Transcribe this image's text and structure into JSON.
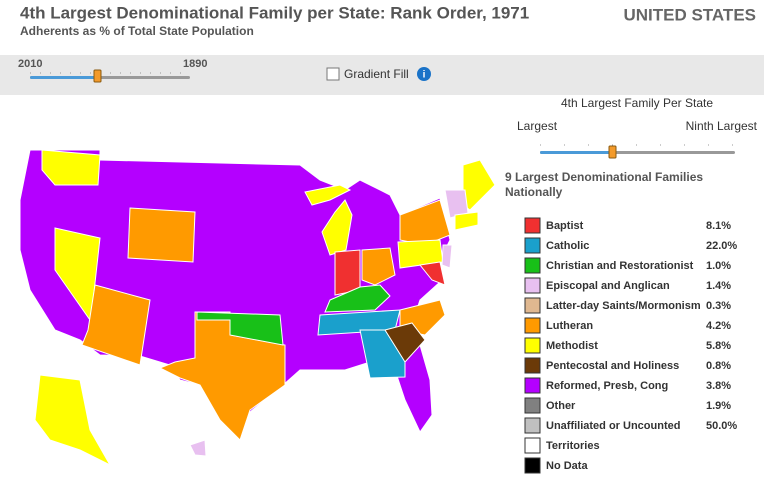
{
  "header": {
    "title": "4th Largest Denominational Family per State: Rank Order, 1971",
    "subtitle": "Adherents as % of Total State Population",
    "region": "UNITED STATES"
  },
  "toolbar": {
    "year_start": "2010",
    "year_end": "1890",
    "gradient_label": "Gradient Fill"
  },
  "panel": {
    "title": "4th Largest Family Per State",
    "rank_left": "Largest",
    "rank_right": "Ninth Largest",
    "legend_heading": "9 Largest Denominational Families Nationally"
  },
  "legend": [
    {
      "name": "Baptist",
      "color": "#f03030",
      "share": "8.1%"
    },
    {
      "name": "Catholic",
      "color": "#1aa0cc",
      "share": "22.0%"
    },
    {
      "name": "Christian and Restorationist",
      "color": "#18c018",
      "share": "1.0%"
    },
    {
      "name": "Episcopal and Anglican",
      "color": "#e8c0f0",
      "share": "1.4%"
    },
    {
      "name": "Latter-day Saints/Mormonism",
      "color": "#e0b890",
      "share": "0.3%"
    },
    {
      "name": "Lutheran",
      "color": "#ff9a00",
      "share": "4.2%"
    },
    {
      "name": "Methodist",
      "color": "#ffff00",
      "share": "5.8%"
    },
    {
      "name": "Pentecostal and Holiness",
      "color": "#6b3a08",
      "share": "0.8%"
    },
    {
      "name": "Reformed, Presb, Cong",
      "color": "#b400ff",
      "share": "3.8%"
    },
    {
      "name": "Other",
      "color": "#808080",
      "share": "1.9%"
    },
    {
      "name": "Unaffiliated or Uncounted",
      "color": "#c0c0c0",
      "share": "50.0%"
    },
    {
      "name": "Territories",
      "color": "#ffffff"
    },
    {
      "name": "No Data",
      "color": "#000000"
    }
  ]
}
